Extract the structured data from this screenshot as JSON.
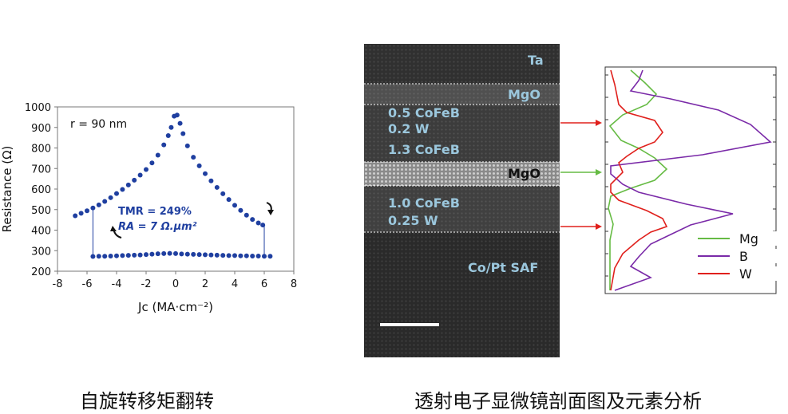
{
  "left_panel": {
    "caption": "自旋转移矩翻转",
    "radius_label": "r = 90 nm",
    "tmr_label": "TMR = 249%",
    "ra_label": "RA = 7 Ω.μm²",
    "series_color": "#1f3fa0"
  },
  "right_panel": {
    "caption": "透射电子显微镜剖面图及元素分析",
    "layers": {
      "ta": "Ta",
      "mgo_top": "MgO",
      "cofeb_05": "0.5 CoFeB",
      "w_02": "0.2 W",
      "cofeb_13": "1.3 CoFeB",
      "mgo_mid": "MgO",
      "cofeb_10": "1.0  CoFeB",
      "w_025": "0.25 W",
      "copt": "Co/Pt SAF"
    },
    "legend": [
      "Mg",
      "B",
      "W"
    ],
    "colors": {
      "Mg": "#66bb44",
      "B": "#7a2aa8",
      "W": "#e0201c"
    }
  },
  "chart_data": [
    {
      "type": "scatter",
      "title": "",
      "xlabel": "Jc (MA·cm⁻²)",
      "ylabel": "Resistance (Ω)",
      "xlim": [
        -8,
        8
      ],
      "ylim": [
        200,
        1000
      ],
      "xticks": [
        -8,
        -6,
        -4,
        -2,
        0,
        2,
        4,
        6,
        8
      ],
      "yticks": [
        200,
        300,
        400,
        500,
        600,
        700,
        800,
        900,
        1000
      ],
      "series": [
        {
          "name": "",
          "x": [
            -6.8,
            -6.4,
            -6.0,
            -5.6,
            -5.2,
            -4.8,
            -4.4,
            -4.0,
            -3.6,
            -3.2,
            -2.8,
            -2.4,
            -2.0,
            -1.6,
            -1.2,
            -0.8,
            -0.5,
            -0.3,
            -0.1,
            0.1,
            0.3,
            0.5,
            0.8,
            1.2,
            1.6,
            2.0,
            2.4,
            2.8,
            3.2,
            3.6,
            4.0,
            4.4,
            4.8,
            5.2,
            5.6,
            5.9
          ],
          "y": [
            470,
            482,
            494,
            508,
            523,
            540,
            558,
            578,
            598,
            620,
            643,
            668,
            695,
            727,
            765,
            815,
            860,
            900,
            955,
            960,
            920,
            870,
            810,
            755,
            713,
            675,
            640,
            608,
            577,
            549,
            521,
            496,
            473,
            452,
            435,
            425
          ]
        },
        {
          "name": "",
          "x": [
            -5.6,
            -5.2,
            -4.8,
            -4.4,
            -4.0,
            -3.6,
            -3.2,
            -2.8,
            -2.4,
            -2.0,
            -1.6,
            -1.2,
            -0.8,
            -0.4,
            0.0,
            0.4,
            0.8,
            1.2,
            1.6,
            2.0,
            2.4,
            2.8,
            3.2,
            3.6,
            4.0,
            4.4,
            4.8,
            5.2,
            5.6,
            6.0,
            6.4
          ],
          "y": [
            272,
            273,
            273,
            274,
            275,
            276,
            277,
            278,
            279,
            281,
            283,
            285,
            286,
            287,
            286,
            284,
            283,
            282,
            281,
            280,
            279,
            278,
            277,
            276,
            276,
            275,
            275,
            274,
            274,
            273,
            273
          ]
        }
      ],
      "transitions": [
        {
          "x": -5.6,
          "from": 508,
          "to": 272
        },
        {
          "x": 6.0,
          "from": 425,
          "to": 273
        }
      ]
    },
    {
      "type": "line",
      "title": "",
      "note": "Element depth profile (Mg, B, W); no printed axes values",
      "series": [
        {
          "name": "Mg",
          "points": [
            [
              30,
              2
            ],
            [
              48,
              18
            ],
            [
              62,
              32
            ],
            [
              50,
              45
            ],
            [
              20,
              58
            ],
            [
              4,
              72
            ],
            [
              18,
              90
            ],
            [
              40,
              100
            ],
            [
              60,
              112
            ],
            [
              75,
              126
            ],
            [
              60,
              140
            ],
            [
              30,
              150
            ],
            [
              5,
              160
            ],
            [
              2,
              175
            ],
            [
              8,
              195
            ],
            [
              4,
              215
            ],
            [
              4,
              240
            ],
            [
              4,
              260
            ],
            [
              4,
              278
            ]
          ]
        },
        {
          "name": "B",
          "points": [
            [
              45,
              2
            ],
            [
              40,
              15
            ],
            [
              30,
              28
            ],
            [
              80,
              38
            ],
            [
              140,
              52
            ],
            [
              180,
              70
            ],
            [
              205,
              92
            ],
            [
              120,
              108
            ],
            [
              5,
              122
            ],
            [
              5,
              132
            ],
            [
              20,
              145
            ],
            [
              40,
              155
            ],
            [
              100,
              170
            ],
            [
              158,
              182
            ],
            [
              105,
              196
            ],
            [
              80,
              208
            ],
            [
              55,
              220
            ],
            [
              40,
              236
            ],
            [
              30,
              248
            ],
            [
              55,
              262
            ],
            [
              10,
              278
            ]
          ]
        },
        {
          "name": "W",
          "points": [
            [
              5,
              2
            ],
            [
              10,
              20
            ],
            [
              15,
              45
            ],
            [
              25,
              55
            ],
            [
              60,
              65
            ],
            [
              70,
              80
            ],
            [
              60,
              92
            ],
            [
              40,
              100
            ],
            [
              25,
              110
            ],
            [
              15,
              118
            ],
            [
              20,
              130
            ],
            [
              5,
              145
            ],
            [
              5,
              155
            ],
            [
              15,
              165
            ],
            [
              50,
              178
            ],
            [
              70,
              188
            ],
            [
              75,
              198
            ],
            [
              55,
              205
            ],
            [
              40,
              215
            ],
            [
              20,
              232
            ],
            [
              10,
              250
            ],
            [
              5,
              278
            ]
          ]
        }
      ]
    }
  ]
}
